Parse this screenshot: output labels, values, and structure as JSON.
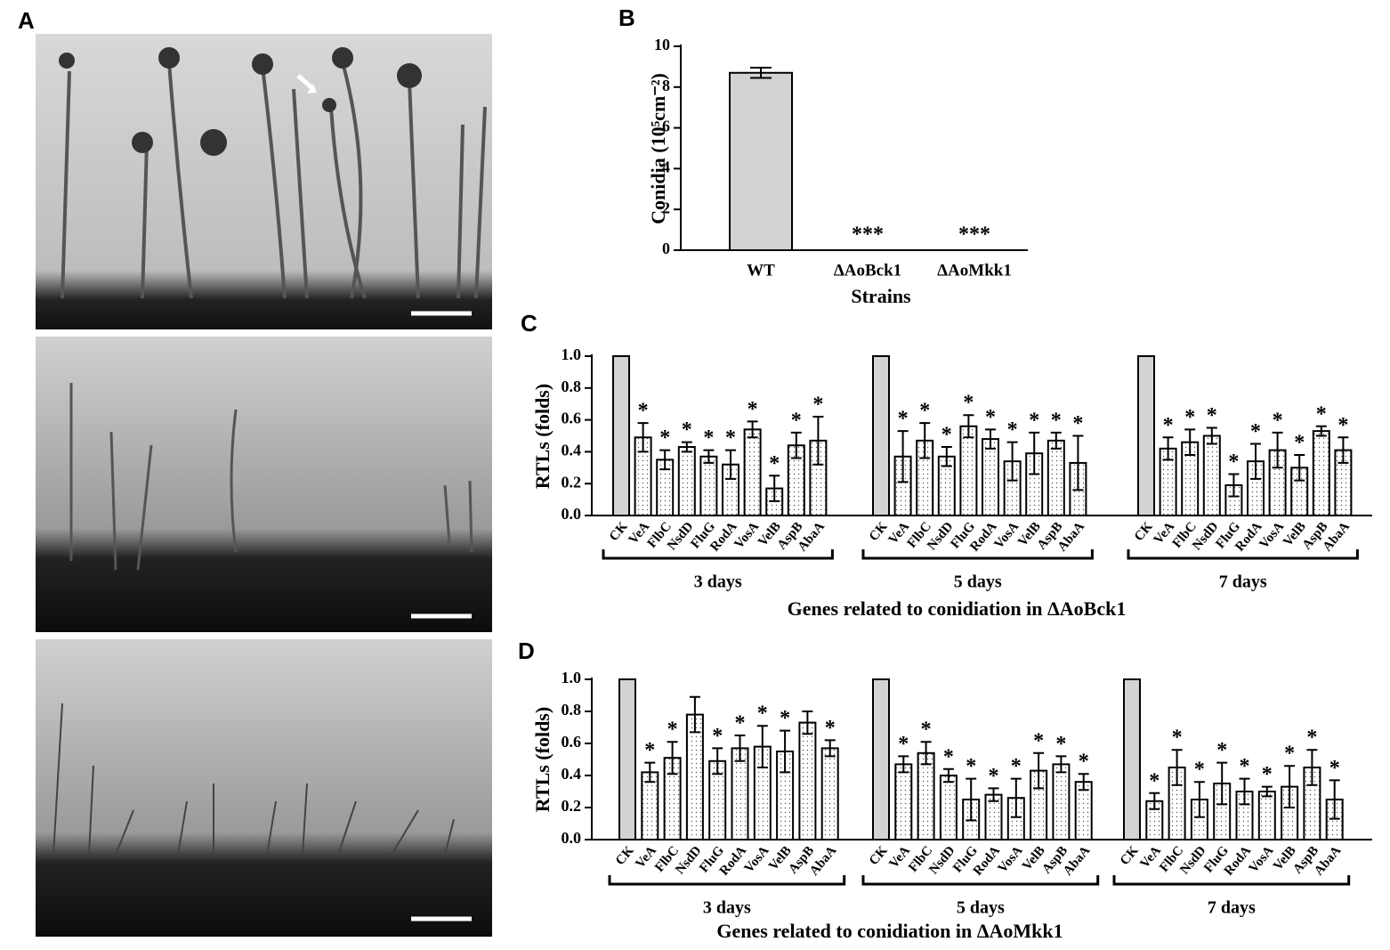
{
  "panel_a_label": "A",
  "chart_data": [
    {
      "type": "bar",
      "panel": "B",
      "y_label": "Conidia (10⁵cm⁻²)",
      "x_label": "Strains",
      "categories": [
        "WT",
        "ΔAoBck1",
        "ΔAoMkk1"
      ],
      "values": [
        8.7,
        0,
        0
      ],
      "errors": [
        0.25,
        null,
        null
      ],
      "annotations": [
        null,
        "***",
        "***"
      ],
      "color": "#d3d3d3",
      "ylim": [
        0,
        10
      ],
      "yticks": [
        0,
        2,
        4,
        6,
        8,
        10
      ]
    },
    {
      "type": "grouped_bar",
      "panel": "C",
      "y_label": "RTLs (folds)",
      "x_label": "Genes related to conidiation in ΔAoBck1",
      "categories": [
        "CK",
        "VeA",
        "FlbC",
        "NsdD",
        "FluG",
        "RodA",
        "VosA",
        "VelB",
        "AspB",
        "AbaA"
      ],
      "control_color": "#d3d3d3",
      "color": "#ffffff",
      "series": [
        {
          "name": "3 days",
          "values": [
            1.0,
            0.49,
            0.35,
            0.43,
            0.37,
            0.32,
            0.54,
            0.17,
            0.44,
            0.47
          ],
          "errors": [
            null,
            0.09,
            0.06,
            0.03,
            0.04,
            0.09,
            0.05,
            0.08,
            0.08,
            0.15
          ],
          "annotations": [
            null,
            "*",
            "*",
            "*",
            "*",
            "*",
            "*",
            "*",
            "*",
            "*"
          ]
        },
        {
          "name": "5 days",
          "values": [
            1.0,
            0.37,
            0.47,
            0.37,
            0.56,
            0.48,
            0.34,
            0.39,
            0.47,
            0.33
          ],
          "errors": [
            null,
            0.16,
            0.11,
            0.06,
            0.07,
            0.06,
            0.12,
            0.13,
            0.05,
            0.17
          ],
          "annotations": [
            null,
            "*",
            "*",
            "*",
            "*",
            "*",
            "*",
            "*",
            "*",
            "*"
          ]
        },
        {
          "name": "7 days",
          "values": [
            1.0,
            0.42,
            0.46,
            0.5,
            0.19,
            0.34,
            0.41,
            0.3,
            0.53,
            0.41
          ],
          "errors": [
            null,
            0.07,
            0.08,
            0.05,
            0.07,
            0.11,
            0.11,
            0.08,
            0.03,
            0.08
          ],
          "annotations": [
            null,
            "*",
            "*",
            "*",
            "*",
            "*",
            "*",
            "*",
            "*",
            "*"
          ]
        }
      ],
      "ylim": [
        0,
        1
      ],
      "yticks": [
        {
          "value": 0,
          "label": "0.0"
        },
        {
          "value": 0.2,
          "label": "0.2"
        },
        {
          "value": 0.4,
          "label": "0.4"
        },
        {
          "value": 0.6,
          "label": "0.6"
        },
        {
          "value": 0.8,
          "label": "0.8"
        },
        {
          "value": 1,
          "label": "1.0"
        }
      ]
    },
    {
      "type": "grouped_bar",
      "panel": "D",
      "y_label": "RTLs (folds)",
      "x_label": "Genes related to conidiation in ΔAoMkk1",
      "categories": [
        "CK",
        "VeA",
        "FlbC",
        "NsdD",
        "FluG",
        "RodA",
        "VosA",
        "VelB",
        "AspB",
        "AbaA"
      ],
      "control_color": "#d3d3d3",
      "color": "#ffffff",
      "series": [
        {
          "name": "3 days",
          "values": [
            1.0,
            0.42,
            0.51,
            0.78,
            0.49,
            0.57,
            0.58,
            0.55,
            0.73,
            0.57
          ],
          "errors": [
            null,
            0.06,
            0.1,
            0.11,
            0.08,
            0.08,
            0.13,
            0.13,
            0.07,
            0.05
          ],
          "annotations": [
            null,
            "*",
            "*",
            null,
            "*",
            "*",
            "*",
            "*",
            null,
            "*"
          ]
        },
        {
          "name": "5 days",
          "values": [
            1.0,
            0.47,
            0.54,
            0.4,
            0.25,
            0.28,
            0.26,
            0.43,
            0.47,
            0.36
          ],
          "errors": [
            null,
            0.05,
            0.07,
            0.04,
            0.13,
            0.04,
            0.12,
            0.11,
            0.05,
            0.05
          ],
          "annotations": [
            null,
            "*",
            "*",
            "*",
            "*",
            "*",
            "*",
            "*",
            "*",
            "*"
          ]
        },
        {
          "name": "7 days",
          "values": [
            1.0,
            0.24,
            0.45,
            0.25,
            0.35,
            0.3,
            0.3,
            0.33,
            0.45,
            0.25
          ],
          "errors": [
            null,
            0.05,
            0.11,
            0.11,
            0.13,
            0.08,
            0.03,
            0.13,
            0.11,
            0.12
          ],
          "annotations": [
            null,
            "*",
            "*",
            "*",
            "*",
            "*",
            "*",
            "*",
            "*",
            "*"
          ]
        }
      ],
      "ylim": [
        0,
        1
      ],
      "yticks": [
        {
          "value": 0,
          "label": "0.0"
        },
        {
          "value": 0.2,
          "label": "0.2"
        },
        {
          "value": 0.4,
          "label": "0.4"
        },
        {
          "value": 0.6,
          "label": "0.6"
        },
        {
          "value": 0.8,
          "label": "0.8"
        },
        {
          "value": 1,
          "label": "1.0"
        }
      ]
    }
  ]
}
